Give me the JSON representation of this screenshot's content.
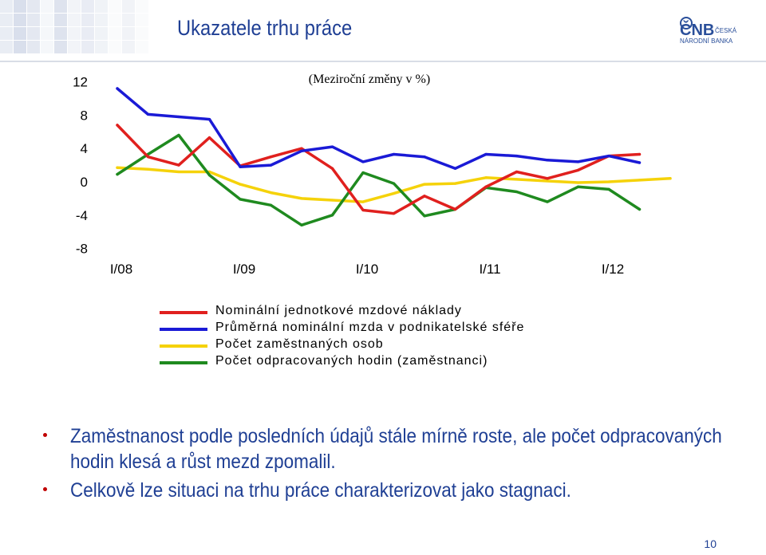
{
  "slide": {
    "title": "Ukazatele trhu práce",
    "page_number": "10",
    "logo": {
      "initials": "ČNB",
      "line1": "ČESKÁ",
      "line2": "NÁRODNÍ BANKA"
    },
    "colors": {
      "title": "#1f3f94",
      "bullet": "#c00000"
    }
  },
  "bullets": [
    {
      "text": "Zaměstnanost podle posledních údajů stále mírně roste, ale počet odpracovaných hodin klesá a růst mezd zpomalil."
    },
    {
      "text": "Celkově lze situaci na trhu práce charakterizovat jako stagnaci."
    }
  ],
  "chart_data": {
    "type": "line",
    "subtitle": "(Meziroční změny v %)",
    "ylim": [
      -8,
      12
    ],
    "yticks": [
      12,
      8,
      4,
      0,
      -4,
      -8
    ],
    "xlim": [
      0,
      19
    ],
    "xticks": [
      {
        "label": "I/08",
        "pos": 0
      },
      {
        "label": "I/09",
        "pos": 4
      },
      {
        "label": "I/10",
        "pos": 8
      },
      {
        "label": "I/11",
        "pos": 12
      },
      {
        "label": "I/12",
        "pos": 16
      }
    ],
    "grid": false,
    "legend_position": "bottom",
    "series": [
      {
        "name": "Nominální jednotkové mzdové náklady",
        "color": "#e0201e",
        "x": [
          0,
          1,
          2,
          3,
          4,
          5,
          6,
          7,
          8,
          9,
          10,
          11,
          12,
          13,
          14,
          15,
          16,
          17
        ],
        "values": [
          6.8,
          3.0,
          2.0,
          5.3,
          1.9,
          3.0,
          4.0,
          1.6,
          -3.4,
          -3.8,
          -1.7,
          -3.3,
          -0.6,
          1.2,
          0.4,
          1.4,
          3.1,
          3.3
        ]
      },
      {
        "name": "Průměrná nominální mzda v podnikatelské sféře",
        "color": "#1a1ad6",
        "x": [
          0,
          1,
          2,
          3,
          4,
          5,
          6,
          7,
          8,
          9,
          10,
          11,
          12,
          13,
          14,
          15,
          16,
          17
        ],
        "values": [
          11.2,
          8.1,
          7.8,
          7.5,
          1.8,
          2.0,
          3.7,
          4.2,
          2.4,
          3.3,
          3.0,
          1.6,
          3.3,
          3.1,
          2.6,
          2.4,
          3.1,
          2.3
        ]
      },
      {
        "name": "Počet zaměstnaných osob",
        "color": "#f5d20a",
        "x": [
          0,
          1,
          2,
          3,
          4,
          5,
          6,
          7,
          8,
          9,
          10,
          11,
          12,
          13,
          14,
          15,
          16,
          17,
          18
        ],
        "values": [
          1.7,
          1.5,
          1.2,
          1.2,
          -0.3,
          -1.3,
          -2.0,
          -2.2,
          -2.4,
          -1.4,
          -0.3,
          -0.2,
          0.5,
          0.3,
          0.1,
          -0.1,
          0.0,
          0.2,
          0.4
        ]
      },
      {
        "name": "Počet odpracovaných hodin (zaměstnanci)",
        "color": "#1f8a1f",
        "x": [
          0,
          1,
          2,
          3,
          4,
          5,
          6,
          7,
          8,
          9,
          10,
          11,
          12,
          13,
          14,
          15,
          16,
          17
        ],
        "values": [
          0.9,
          3.3,
          5.6,
          0.8,
          -2.1,
          -2.8,
          -5.2,
          -4.0,
          1.1,
          -0.2,
          -4.1,
          -3.3,
          -0.7,
          -1.2,
          -2.4,
          -0.6,
          -0.9,
          -3.3
        ]
      }
    ]
  }
}
